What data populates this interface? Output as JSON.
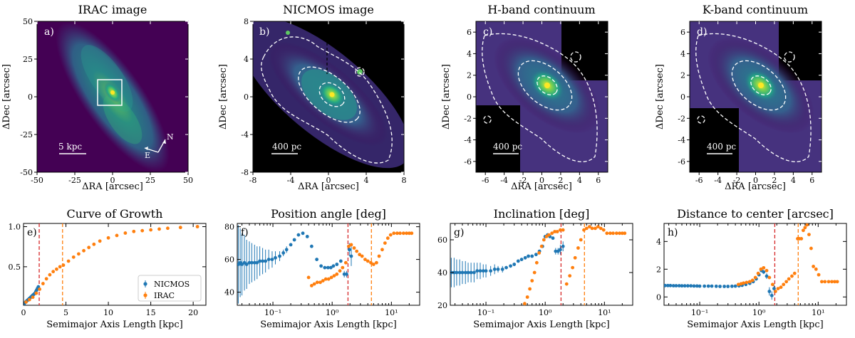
{
  "figure": {
    "panels": [
      {
        "id": "a",
        "title": "IRAC image",
        "letter": "a)",
        "xlabel": "ΔRA [arcsec]",
        "ylabel": "ΔDec [arcsec]",
        "xlim": [
          -50,
          50
        ],
        "ylim": [
          -50,
          50
        ],
        "xticks": [
          -50,
          -25,
          0,
          25,
          50
        ],
        "yticks": [
          -50,
          -25,
          0,
          25,
          50
        ],
        "scalebar": "5 kpc",
        "compass_n": "N",
        "compass_e": "E"
      },
      {
        "id": "b",
        "title": "NICMOS image",
        "letter": "b)",
        "xlabel": "ΔRA [arcsec]",
        "ylabel": "ΔDec [arcsec]",
        "xlim": [
          -8,
          8
        ],
        "ylim": [
          -8,
          8
        ],
        "xticks": [
          -8,
          -4,
          0,
          4,
          8
        ],
        "yticks": [
          -8,
          -4,
          0,
          4,
          8
        ],
        "scalebar": "400 pc"
      },
      {
        "id": "c",
        "title": "H-band continuum",
        "letter": "c)",
        "xlabel": "ΔRA [arcsec]",
        "ylabel": "ΔDec [arcsec]",
        "xlim": [
          -7,
          7
        ],
        "ylim": [
          -7,
          7
        ],
        "xticks": [
          -6,
          -4,
          -2,
          0,
          2,
          4,
          6
        ],
        "yticks": [
          -6,
          -4,
          -2,
          0,
          2,
          4,
          6
        ],
        "scalebar": "400 pc"
      },
      {
        "id": "d",
        "title": "K-band continuum",
        "letter": "d)",
        "xlabel": "ΔRA [arcsec]",
        "ylabel": "ΔDec [arcsec]",
        "xlim": [
          -7,
          7
        ],
        "ylim": [
          -7,
          7
        ],
        "xticks": [
          -6,
          -4,
          -2,
          0,
          2,
          4,
          6
        ],
        "yticks": [
          -6,
          -4,
          -2,
          0,
          2,
          4,
          6
        ],
        "scalebar": "400 pc"
      }
    ]
  },
  "chart_data": [
    {
      "type": "scatter",
      "id": "e",
      "title": "Curve of Growth",
      "letter": "e)",
      "xlabel": "Semimajor Axis Length [kpc]",
      "ylabel": "",
      "xscale": "linear",
      "xlim": [
        0,
        21.5
      ],
      "ylim": [
        0.02,
        1.04
      ],
      "xticks": [
        0,
        5,
        10,
        15,
        20
      ],
      "yticks": [
        0.5,
        1.0
      ],
      "xtick_labels": [
        "0",
        "5",
        "10",
        "15",
        "20"
      ],
      "ytick_labels": [
        "0.5",
        "1.0"
      ],
      "vlines": [
        {
          "x": 1.85,
          "color": "#d62728"
        },
        {
          "x": 4.6,
          "color": "#ff7f0e"
        }
      ],
      "legend": {
        "position": "lower-right",
        "entries": [
          "NICMOS",
          "IRAC"
        ]
      },
      "series": [
        {
          "name": "NICMOS",
          "color": "#1f77b4",
          "x": [
            0.08,
            0.15,
            0.25,
            0.35,
            0.45,
            0.55,
            0.65,
            0.75,
            0.85,
            0.95,
            1.05,
            1.15,
            1.25,
            1.35,
            1.45,
            1.55,
            1.65,
            1.75
          ],
          "y": [
            0.04,
            0.05,
            0.06,
            0.07,
            0.08,
            0.09,
            0.1,
            0.11,
            0.12,
            0.13,
            0.14,
            0.15,
            0.16,
            0.17,
            0.19,
            0.21,
            0.23,
            0.25
          ]
        },
        {
          "name": "IRAC",
          "color": "#ff7f0e",
          "x": [
            0.3,
            0.7,
            1.1,
            1.5,
            1.9,
            2.3,
            2.7,
            3.1,
            3.5,
            3.9,
            4.3,
            4.7,
            5.3,
            5.9,
            6.5,
            7.1,
            7.7,
            8.3,
            9.0,
            10.0,
            11.0,
            12.0,
            13.0,
            14.0,
            15.0,
            16.0,
            17.0,
            18.5,
            20.5
          ],
          "y": [
            0.06,
            0.09,
            0.12,
            0.17,
            0.22,
            0.29,
            0.35,
            0.4,
            0.44,
            0.47,
            0.5,
            0.52,
            0.57,
            0.62,
            0.66,
            0.7,
            0.74,
            0.78,
            0.82,
            0.86,
            0.89,
            0.92,
            0.94,
            0.95,
            0.96,
            0.97,
            0.98,
            0.99,
            1.0
          ]
        }
      ]
    },
    {
      "type": "scatter",
      "id": "f",
      "title": "Position angle [deg]",
      "letter": "f)",
      "xlabel": "Semimajor Axis Length [kpc]",
      "ylabel": "",
      "xscale": "log",
      "xlim": [
        0.025,
        30
      ],
      "ylim": [
        32,
        82
      ],
      "xticks": [
        0.1,
        1,
        10
      ],
      "yticks": [
        40,
        60,
        80
      ],
      "xtick_labels": [
        "10⁻¹",
        "10⁰",
        "10¹"
      ],
      "ytick_labels": [
        "40",
        "60",
        "80"
      ],
      "vlines": [
        {
          "x": 1.85,
          "color": "#d62728"
        },
        {
          "x": 4.6,
          "color": "#ff7f0e"
        }
      ],
      "series": [
        {
          "name": "NICMOS",
          "color": "#1f77b4",
          "x": [
            0.026,
            0.028,
            0.03,
            0.033,
            0.036,
            0.04,
            0.044,
            0.049,
            0.054,
            0.06,
            0.067,
            0.075,
            0.085,
            0.097,
            0.11,
            0.13,
            0.15,
            0.17,
            0.2,
            0.23,
            0.27,
            0.32,
            0.38,
            0.45,
            0.55,
            0.65,
            0.75,
            0.85,
            0.95,
            1.05,
            1.2,
            1.4,
            1.6,
            1.75,
            1.95,
            2.1
          ],
          "y": [
            57,
            58,
            57,
            58,
            57,
            58,
            58,
            58,
            58,
            59,
            59,
            59,
            60,
            60,
            61,
            62,
            64,
            66,
            69,
            72,
            75,
            76,
            74,
            68,
            60,
            56,
            55,
            55,
            55,
            56,
            57,
            59,
            51,
            51,
            66,
            62
          ],
          "err": [
            24,
            21,
            19,
            17,
            15,
            13,
            12,
            11,
            10,
            9,
            8,
            7,
            6,
            5,
            4,
            3,
            2,
            2,
            1,
            1,
            1,
            1,
            1,
            1,
            1,
            1,
            1,
            1,
            1,
            1,
            1,
            1,
            2,
            2,
            4,
            6
          ]
        },
        {
          "name": "IRAC",
          "color": "#ff7f0e",
          "x": [
            0.4,
            0.45,
            0.5,
            0.56,
            0.63,
            0.7,
            0.78,
            0.87,
            0.97,
            1.08,
            1.2,
            1.35,
            1.5,
            1.7,
            1.9,
            2.1,
            2.35,
            2.6,
            2.9,
            3.2,
            3.6,
            4.0,
            4.5,
            5.0,
            5.6,
            6.2,
            7.0,
            7.8,
            8.7,
            9.7,
            11,
            12.5,
            14,
            16,
            18,
            20,
            22
          ],
          "y": [
            49,
            44,
            45,
            46,
            46,
            47,
            48,
            48,
            49,
            50,
            51,
            53,
            55,
            58,
            68,
            69,
            67,
            65,
            63,
            62,
            60,
            59,
            58,
            57,
            58,
            62,
            66,
            70,
            73,
            75,
            76,
            76,
            76,
            76,
            76,
            76,
            76
          ]
        }
      ]
    },
    {
      "type": "scatter",
      "id": "g",
      "title": "Inclination [deg]",
      "letter": "g)",
      "xlabel": "Semimajor Axis Length [kpc]",
      "ylabel": "",
      "xscale": "log",
      "xlim": [
        0.025,
        30
      ],
      "ylim": [
        20,
        70
      ],
      "xticks": [
        0.1,
        1,
        10
      ],
      "yticks": [
        20,
        40,
        60
      ],
      "xtick_labels": [
        "10⁻¹",
        "10⁰",
        "10¹"
      ],
      "ytick_labels": [
        "20",
        "40",
        "60"
      ],
      "vlines": [
        {
          "x": 1.85,
          "color": "#d62728"
        },
        {
          "x": 4.6,
          "color": "#ff7f0e"
        }
      ],
      "series": [
        {
          "name": "NICMOS",
          "color": "#1f77b4",
          "x": [
            0.026,
            0.029,
            0.032,
            0.036,
            0.04,
            0.045,
            0.05,
            0.056,
            0.063,
            0.071,
            0.08,
            0.09,
            0.1,
            0.12,
            0.14,
            0.16,
            0.19,
            0.22,
            0.26,
            0.3,
            0.35,
            0.4,
            0.46,
            0.52,
            0.6,
            0.7,
            0.8,
            0.9,
            1.0,
            1.1,
            1.2,
            1.35,
            1.5,
            1.65,
            1.8,
            2.0
          ],
          "y": [
            40,
            40,
            40,
            40,
            40,
            40,
            40,
            40,
            40,
            41,
            41,
            41,
            41,
            41,
            42,
            42,
            42,
            43,
            44,
            45,
            47,
            48,
            49,
            50,
            50,
            51,
            53,
            56,
            62,
            63,
            62,
            61,
            53,
            53,
            54,
            56
          ],
          "err": [
            9,
            9,
            8,
            8,
            7,
            7,
            6,
            6,
            6,
            5,
            5,
            4,
            4,
            3,
            3,
            2,
            2,
            1,
            1,
            1,
            1,
            1,
            1,
            1,
            1,
            1,
            1,
            1,
            1,
            1,
            1,
            1,
            2,
            2,
            3,
            3
          ]
        },
        {
          "name": "IRAC",
          "color": "#ff7f0e",
          "x": [
            0.45,
            0.5,
            0.55,
            0.6,
            0.66,
            0.72,
            0.79,
            0.87,
            0.95,
            1.05,
            1.15,
            1.3,
            1.45,
            1.6,
            1.8,
            2.0,
            2.3,
            2.6,
            2.9,
            3.2,
            3.6,
            4.0,
            4.5,
            5.0,
            5.6,
            6.2,
            7.0,
            7.8,
            8.7,
            9.7,
            11,
            12.5,
            14,
            16,
            18,
            20,
            22
          ],
          "y": [
            21,
            25,
            30,
            35,
            40,
            46,
            52,
            56,
            60,
            62,
            63,
            64,
            65,
            65,
            66,
            66,
            33,
            38,
            43,
            49,
            55,
            60,
            66,
            67,
            68,
            67,
            67,
            68,
            67,
            66,
            64,
            64,
            64,
            64,
            64,
            64,
            64
          ]
        }
      ]
    },
    {
      "type": "scatter",
      "id": "h",
      "title": "Distance to center [arcsec]",
      "letter": "h)",
      "xlabel": "Semimajor Axis Length [kpc]",
      "ylabel": "",
      "xscale": "log",
      "xlim": [
        0.025,
        30
      ],
      "ylim": [
        -0.6,
        5.3
      ],
      "xticks": [
        0.1,
        1,
        10
      ],
      "yticks": [
        0,
        2,
        4
      ],
      "xtick_labels": [
        "10⁻¹",
        "10⁰",
        "10¹"
      ],
      "ytick_labels": [
        "0",
        "2",
        "4"
      ],
      "vlines": [
        {
          "x": 1.85,
          "color": "#d62728"
        },
        {
          "x": 4.6,
          "color": "#ff7f0e"
        }
      ],
      "series": [
        {
          "name": "NICMOS",
          "color": "#1f77b4",
          "x": [
            0.026,
            0.029,
            0.032,
            0.036,
            0.04,
            0.045,
            0.05,
            0.056,
            0.063,
            0.071,
            0.08,
            0.09,
            0.1,
            0.12,
            0.14,
            0.16,
            0.19,
            0.22,
            0.26,
            0.3,
            0.35,
            0.4,
            0.46,
            0.52,
            0.6,
            0.7,
            0.8,
            0.9,
            1.0,
            1.1,
            1.2,
            1.35,
            1.5,
            1.65,
            1.8
          ],
          "y": [
            0.82,
            0.82,
            0.82,
            0.81,
            0.81,
            0.81,
            0.8,
            0.8,
            0.8,
            0.8,
            0.79,
            0.79,
            0.78,
            0.78,
            0.78,
            0.78,
            0.77,
            0.76,
            0.76,
            0.76,
            0.77,
            0.78,
            0.8,
            0.84,
            0.9,
            0.98,
            1.1,
            1.3,
            1.6,
            1.9,
            1.8,
            1.5,
            0.4,
            0.1,
            0.6
          ],
          "err": [
            0.02,
            0.02,
            0.02,
            0.02,
            0.02,
            0.02,
            0.02,
            0.02,
            0.02,
            0.02,
            0.02,
            0.02,
            0.02,
            0.02,
            0.02,
            0.02,
            0.02,
            0.02,
            0.02,
            0.02,
            0.02,
            0.02,
            0.02,
            0.03,
            0.03,
            0.04,
            0.05,
            0.06,
            0.08,
            0.1,
            0.15,
            0.2,
            0.3,
            0.3,
            0.3
          ]
        },
        {
          "name": "IRAC",
          "color": "#ff7f0e",
          "x": [
            0.45,
            0.5,
            0.55,
            0.62,
            0.7,
            0.78,
            0.87,
            0.97,
            1.08,
            1.2,
            1.35,
            1.5,
            1.7,
            1.9,
            2.1,
            2.35,
            2.6,
            2.9,
            3.2,
            3.6,
            4.0,
            4.5,
            4.8,
            5.2,
            5.6,
            6.0,
            6.5,
            7.0,
            7.6,
            8.3,
            9.2,
            10.2,
            11.5,
            13,
            15,
            17,
            19,
            21
          ],
          "y": [
            0.9,
            0.95,
            1.0,
            1.05,
            1.1,
            1.2,
            1.4,
            1.7,
            2.0,
            2.1,
            1.9,
            1.4,
            0.9,
            0.4,
            0.6,
            0.7,
            0.9,
            1.1,
            1.3,
            1.5,
            1.7,
            4.2,
            4.2,
            4.2,
            4.8,
            5.0,
            5.2,
            4.5,
            3.5,
            2.2,
            2.0,
            1.6,
            1.1,
            1.1,
            1.1,
            1.1,
            1.1,
            1.1
          ]
        }
      ]
    }
  ]
}
